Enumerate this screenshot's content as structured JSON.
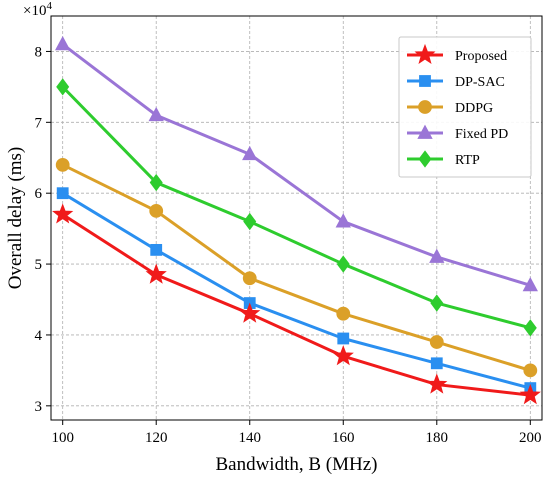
{
  "chart_data": {
    "type": "line",
    "xlabel": "Bandwidth, B (MHz)",
    "ylabel": "Overall delay (ms)",
    "y_scale_exponent": "×10^4",
    "x": [
      100,
      120,
      140,
      160,
      180,
      200
    ],
    "xlim": [
      97.5,
      202.5
    ],
    "ylim": [
      2.8,
      8.5
    ],
    "y_multiplier": 10000,
    "x_ticks": [
      "100",
      "120",
      "140",
      "160",
      "180",
      "200"
    ],
    "y_ticks": [
      "3",
      "4",
      "5",
      "6",
      "7",
      "8"
    ],
    "grid": true,
    "legend_position": "top-right",
    "series": [
      {
        "name": "Proposed",
        "color": "#f01a1a",
        "marker": "star",
        "values": [
          5.7,
          4.85,
          4.3,
          3.7,
          3.3,
          3.15
        ]
      },
      {
        "name": "DP-SAC",
        "color": "#2a8ff0",
        "marker": "square",
        "values": [
          6.0,
          5.2,
          4.45,
          3.95,
          3.6,
          3.25
        ]
      },
      {
        "name": "DDPG",
        "color": "#dba028",
        "marker": "circle",
        "values": [
          6.4,
          5.75,
          4.8,
          4.3,
          3.9,
          3.5
        ]
      },
      {
        "name": "Fixed PD",
        "color": "#9a75d6",
        "marker": "triangle",
        "values": [
          8.1,
          7.1,
          6.55,
          5.6,
          5.1,
          4.7
        ]
      },
      {
        "name": "RTP",
        "color": "#2ecc2e",
        "marker": "diamond",
        "values": [
          7.5,
          6.15,
          5.6,
          5.0,
          4.45,
          4.1
        ]
      }
    ]
  }
}
